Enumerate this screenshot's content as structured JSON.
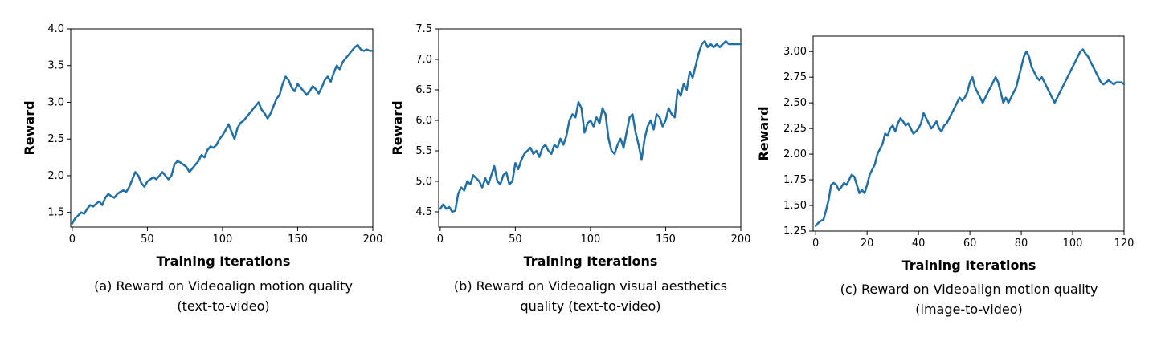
{
  "chart_data": [
    {
      "type": "line",
      "xlabel": "Training Iterations",
      "ylabel": "Reward",
      "caption_lines": [
        "(a) Reward on Videoalign motion quality",
        "(text-to-video)"
      ],
      "xlim": [
        -1,
        200
      ],
      "ylim": [
        1.3,
        4.0
      ],
      "xticks": [
        0,
        50,
        100,
        150,
        200
      ],
      "yticks": [
        1.5,
        2.0,
        2.5,
        3.0,
        3.5,
        4.0
      ],
      "ytick_labels": [
        "1.5",
        "2.0",
        "2.5",
        "3.0",
        "3.5",
        "4.0"
      ],
      "grid": false,
      "color": "#1f6fa8",
      "series": [
        {
          "x": [
            0,
            2,
            4,
            6,
            8,
            10,
            12,
            14,
            16,
            18,
            20,
            22,
            24,
            26,
            28,
            30,
            32,
            34,
            36,
            38,
            40,
            42,
            44,
            46,
            48,
            50,
            52,
            54,
            56,
            58,
            60,
            62,
            64,
            66,
            68,
            70,
            72,
            74,
            76,
            78,
            80,
            82,
            84,
            86,
            88,
            90,
            92,
            94,
            96,
            98,
            100,
            102,
            104,
            106,
            108,
            110,
            112,
            114,
            116,
            118,
            120,
            122,
            124,
            126,
            128,
            130,
            132,
            134,
            136,
            138,
            140,
            142,
            144,
            146,
            148,
            150,
            152,
            154,
            156,
            158,
            160,
            162,
            164,
            166,
            168,
            170,
            172,
            174,
            176,
            178,
            180,
            182,
            184,
            186,
            188,
            190,
            192,
            194,
            196,
            198,
            200
          ],
          "y": [
            1.35,
            1.42,
            1.46,
            1.5,
            1.48,
            1.55,
            1.6,
            1.58,
            1.62,
            1.65,
            1.6,
            1.7,
            1.75,
            1.72,
            1.7,
            1.75,
            1.78,
            1.8,
            1.78,
            1.85,
            1.95,
            2.05,
            2.0,
            1.9,
            1.85,
            1.92,
            1.95,
            1.98,
            1.95,
            2.0,
            2.05,
            2.0,
            1.95,
            2.0,
            2.15,
            2.2,
            2.18,
            2.15,
            2.12,
            2.05,
            2.1,
            2.15,
            2.2,
            2.28,
            2.25,
            2.35,
            2.4,
            2.38,
            2.42,
            2.5,
            2.55,
            2.62,
            2.7,
            2.6,
            2.5,
            2.65,
            2.72,
            2.75,
            2.8,
            2.85,
            2.9,
            2.95,
            3.0,
            2.9,
            2.85,
            2.78,
            2.85,
            2.95,
            3.05,
            3.1,
            3.25,
            3.35,
            3.3,
            3.2,
            3.15,
            3.25,
            3.2,
            3.15,
            3.1,
            3.15,
            3.22,
            3.18,
            3.12,
            3.2,
            3.3,
            3.35,
            3.28,
            3.4,
            3.5,
            3.45,
            3.55,
            3.6,
            3.65,
            3.7,
            3.75,
            3.78,
            3.72,
            3.7,
            3.72,
            3.7,
            3.7
          ]
        }
      ]
    },
    {
      "type": "line",
      "xlabel": "Training Iterations",
      "ylabel": "Reward",
      "caption_lines": [
        "(b) Reward on Videoalign visual aesthetics",
        "quality (text-to-video)"
      ],
      "xlim": [
        -1,
        200
      ],
      "ylim": [
        4.25,
        7.5
      ],
      "xticks": [
        0,
        50,
        100,
        150,
        200
      ],
      "yticks": [
        4.5,
        5.0,
        5.5,
        6.0,
        6.5,
        7.0,
        7.5
      ],
      "ytick_labels": [
        "4.5",
        "5.0",
        "5.5",
        "6.0",
        "6.5",
        "7.0",
        "7.5"
      ],
      "grid": false,
      "color": "#1f6fa8",
      "series": [
        {
          "x": [
            0,
            2,
            4,
            6,
            8,
            10,
            12,
            14,
            16,
            18,
            20,
            22,
            24,
            26,
            28,
            30,
            32,
            34,
            36,
            38,
            40,
            42,
            44,
            46,
            48,
            50,
            52,
            54,
            56,
            58,
            60,
            62,
            64,
            66,
            68,
            70,
            72,
            74,
            76,
            78,
            80,
            82,
            84,
            86,
            88,
            90,
            92,
            94,
            96,
            98,
            100,
            102,
            104,
            106,
            108,
            110,
            112,
            114,
            116,
            118,
            120,
            122,
            124,
            126,
            128,
            130,
            132,
            134,
            136,
            138,
            140,
            142,
            144,
            146,
            148,
            150,
            152,
            154,
            156,
            158,
            160,
            162,
            164,
            166,
            168,
            170,
            172,
            174,
            176,
            178,
            180,
            182,
            184,
            186,
            188,
            190,
            192,
            194,
            196,
            198,
            200
          ],
          "y": [
            4.55,
            4.62,
            4.55,
            4.58,
            4.5,
            4.52,
            4.8,
            4.9,
            4.85,
            5.0,
            4.95,
            5.1,
            5.05,
            5.0,
            4.9,
            5.05,
            4.95,
            5.1,
            5.25,
            5.0,
            4.95,
            5.1,
            5.15,
            4.95,
            5.0,
            5.3,
            5.2,
            5.35,
            5.45,
            5.5,
            5.55,
            5.45,
            5.5,
            5.4,
            5.55,
            5.6,
            5.5,
            5.45,
            5.6,
            5.55,
            5.7,
            5.6,
            5.75,
            6.0,
            6.1,
            6.05,
            6.3,
            6.2,
            5.8,
            5.95,
            6.0,
            5.9,
            6.05,
            5.95,
            6.2,
            6.1,
            5.7,
            5.5,
            5.45,
            5.6,
            5.7,
            5.55,
            5.8,
            6.05,
            6.1,
            5.8,
            5.6,
            5.35,
            5.7,
            5.9,
            6.0,
            5.85,
            6.1,
            6.05,
            5.9,
            6.0,
            6.2,
            6.1,
            6.05,
            6.5,
            6.4,
            6.6,
            6.5,
            6.8,
            6.7,
            6.9,
            7.1,
            7.25,
            7.3,
            7.2,
            7.25,
            7.2,
            7.25,
            7.2,
            7.25,
            7.3,
            7.25,
            7.25,
            7.25,
            7.25,
            7.25
          ]
        }
      ]
    },
    {
      "type": "line",
      "xlabel": "Training Iterations",
      "ylabel": "Reward",
      "caption_lines": [
        "(c) Reward on Videoalign motion quality",
        "(image-to-video)"
      ],
      "xlim": [
        -1,
        120
      ],
      "ylim": [
        1.25,
        3.15
      ],
      "xticks": [
        0,
        20,
        40,
        60,
        80,
        100,
        120
      ],
      "yticks": [
        1.25,
        1.5,
        1.75,
        2.0,
        2.25,
        2.5,
        2.75,
        3.0
      ],
      "ytick_labels": [
        "1.25",
        "1.50",
        "1.75",
        "2.00",
        "2.25",
        "2.50",
        "2.75",
        "3.00"
      ],
      "grid": false,
      "color": "#1f6fa8",
      "series": [
        {
          "x": [
            0,
            1,
            2,
            3,
            4,
            5,
            6,
            7,
            8,
            9,
            10,
            11,
            12,
            13,
            14,
            15,
            16,
            17,
            18,
            19,
            20,
            21,
            22,
            23,
            24,
            25,
            26,
            27,
            28,
            29,
            30,
            31,
            32,
            33,
            34,
            35,
            36,
            37,
            38,
            39,
            40,
            41,
            42,
            43,
            44,
            45,
            46,
            47,
            48,
            49,
            50,
            51,
            52,
            53,
            54,
            55,
            56,
            57,
            58,
            59,
            60,
            61,
            62,
            63,
            64,
            65,
            66,
            67,
            68,
            69,
            70,
            71,
            72,
            73,
            74,
            75,
            76,
            77,
            78,
            79,
            80,
            81,
            82,
            83,
            84,
            85,
            86,
            87,
            88,
            89,
            90,
            91,
            92,
            93,
            94,
            95,
            96,
            97,
            98,
            99,
            100,
            101,
            102,
            103,
            104,
            105,
            106,
            107,
            108,
            109,
            110,
            111,
            112,
            113,
            114,
            115,
            116,
            117,
            118,
            119,
            120
          ],
          "y": [
            1.3,
            1.33,
            1.35,
            1.36,
            1.45,
            1.55,
            1.7,
            1.72,
            1.7,
            1.65,
            1.68,
            1.72,
            1.7,
            1.75,
            1.8,
            1.78,
            1.7,
            1.62,
            1.65,
            1.62,
            1.7,
            1.8,
            1.85,
            1.9,
            2.0,
            2.05,
            2.1,
            2.2,
            2.18,
            2.25,
            2.28,
            2.22,
            2.3,
            2.35,
            2.32,
            2.28,
            2.3,
            2.25,
            2.2,
            2.22,
            2.25,
            2.3,
            2.4,
            2.35,
            2.3,
            2.25,
            2.28,
            2.32,
            2.25,
            2.22,
            2.28,
            2.3,
            2.35,
            2.4,
            2.45,
            2.5,
            2.55,
            2.52,
            2.55,
            2.6,
            2.7,
            2.75,
            2.65,
            2.6,
            2.55,
            2.5,
            2.55,
            2.6,
            2.65,
            2.7,
            2.75,
            2.7,
            2.6,
            2.5,
            2.55,
            2.5,
            2.55,
            2.6,
            2.65,
            2.75,
            2.85,
            2.95,
            3.0,
            2.95,
            2.85,
            2.8,
            2.75,
            2.72,
            2.75,
            2.7,
            2.65,
            2.6,
            2.55,
            2.5,
            2.55,
            2.6,
            2.65,
            2.7,
            2.75,
            2.8,
            2.85,
            2.9,
            2.95,
            3.0,
            3.02,
            2.98,
            2.95,
            2.9,
            2.85,
            2.8,
            2.75,
            2.7,
            2.68,
            2.7,
            2.72,
            2.7,
            2.68,
            2.7,
            2.7,
            2.7,
            2.68
          ]
        }
      ]
    }
  ]
}
